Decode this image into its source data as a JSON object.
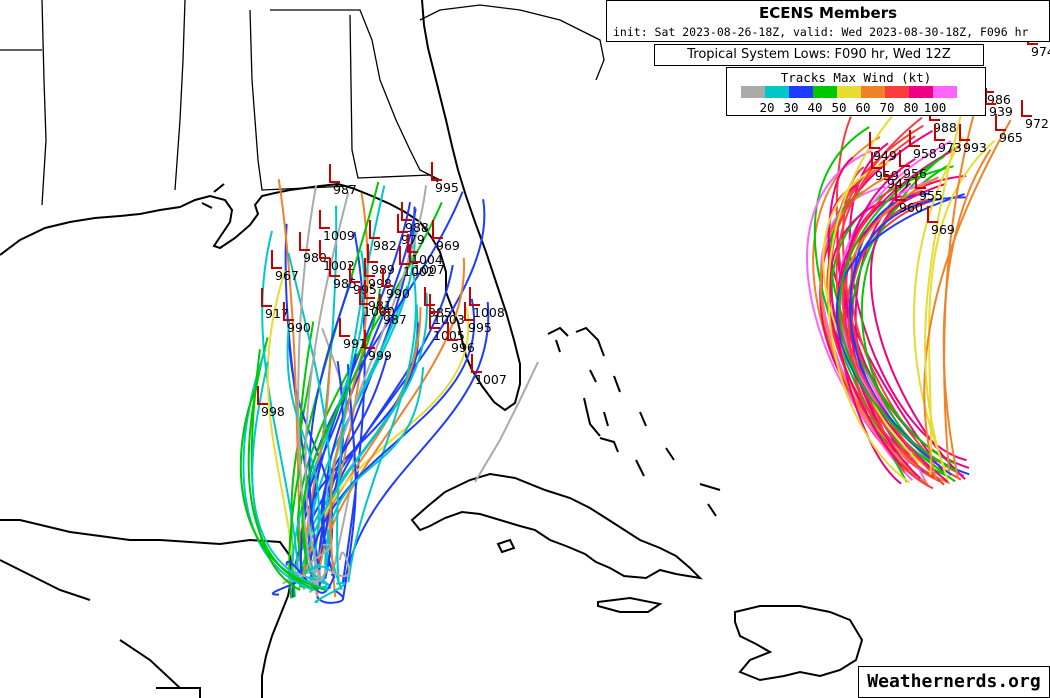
{
  "header": {
    "title": "ECENS Members",
    "subtitle": "init: Sat 2023-08-26-18Z, valid: Wed 2023-08-30-18Z, F096 hr"
  },
  "lows_label": "Tropical System Lows: F090 hr, Wed 12Z",
  "legend": {
    "title": "Tracks Max Wind (kt)",
    "colors": [
      "#aaaaaa",
      "#00c8c8",
      "#1e3cff",
      "#00c800",
      "#e6dc32",
      "#f08228",
      "#fa3c3c",
      "#f00082",
      "#ff64ff"
    ],
    "labels": [
      "20",
      "30",
      "40",
      "50",
      "60",
      "70",
      "80",
      "100"
    ]
  },
  "credit": "Weathernerds.org",
  "track_colors": {
    "gray": "#aaaaaa",
    "cyan": "#00c8c8",
    "blue": "#1e3cff",
    "green": "#00c800",
    "yellow": "#e6dc32",
    "orange": "#f08228",
    "red": "#fa3c3c",
    "magenta": "#f00082",
    "pink": "#ff64ff",
    "low_marker": "#c80000"
  },
  "gulf_lows": [
    "987",
    "995",
    "988",
    "979",
    "969",
    "1009",
    "982",
    "989",
    "980",
    "1004",
    "967",
    "1002",
    "1007",
    "1002",
    "985",
    "998",
    "995",
    "981",
    "990",
    "1000",
    "1008",
    "985",
    "1003",
    "987",
    "995",
    "1005",
    "917",
    "990",
    "991",
    "999",
    "996",
    "998",
    "1007"
  ],
  "atlantic_lows": [
    "986",
    "972",
    "939",
    "965",
    "988",
    "949",
    "958",
    "973",
    "993",
    "959",
    "956",
    "947",
    "955",
    "960",
    "969",
    "974"
  ]
}
